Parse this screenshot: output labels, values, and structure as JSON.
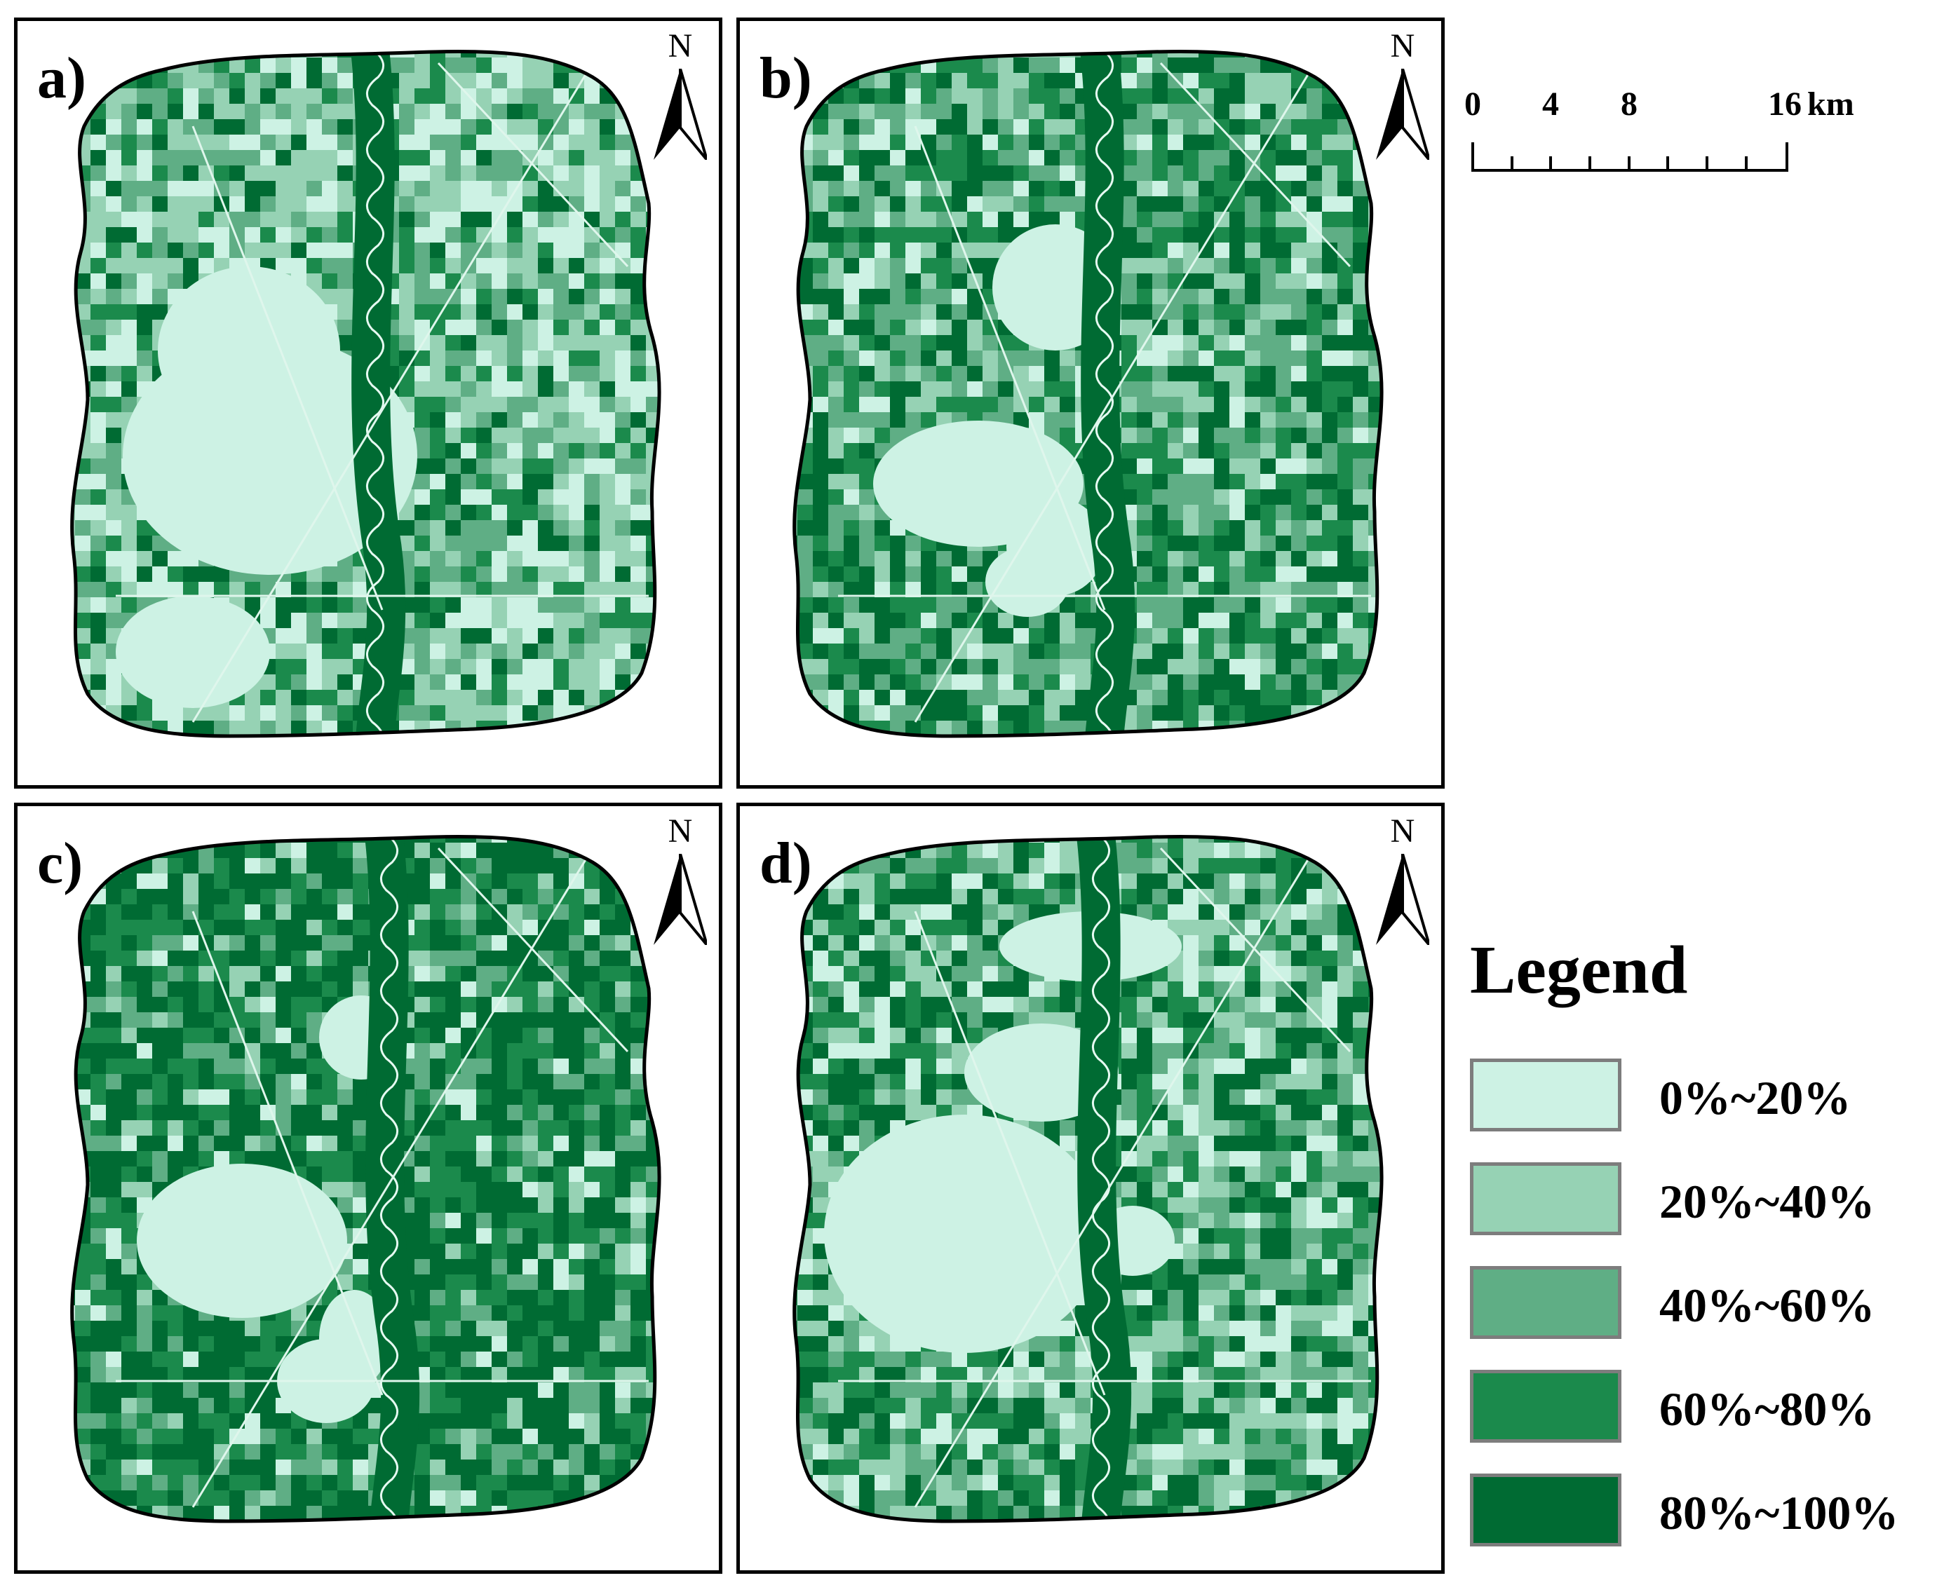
{
  "panels": [
    {
      "label": "a)",
      "north": "N"
    },
    {
      "label": "b)",
      "north": "N"
    },
    {
      "label": "c)",
      "north": "N"
    },
    {
      "label": "d)",
      "north": "N"
    }
  ],
  "scale_bar": {
    "ticks": [
      "0",
      "4",
      "8",
      "16"
    ],
    "tick_values_km": [
      0,
      4,
      8,
      16
    ],
    "unit": "km"
  },
  "legend": {
    "title": "Legend",
    "items": [
      {
        "label": "0%~20%",
        "color": "#cdf2e4"
      },
      {
        "label": "20%~40%",
        "color": "#96d2b4"
      },
      {
        "label": "40%~60%",
        "color": "#5fae85"
      },
      {
        "label": "60%~80%",
        "color": "#1b8a4c"
      },
      {
        "label": "80%~100%",
        "color": "#006b33"
      }
    ]
  }
}
